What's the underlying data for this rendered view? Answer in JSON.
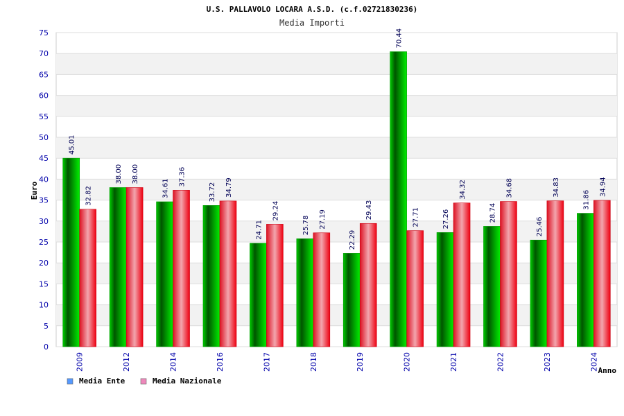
{
  "chart_data": {
    "type": "bar",
    "title": "U.S. PALLAVOLO LOCARA A.S.D. (c.f.02721830236)",
    "subtitle": "Media Importi",
    "xlabel": "Anno",
    "ylabel": "Euro",
    "ylim": [
      0,
      75
    ],
    "yticks": [
      0,
      5,
      10,
      15,
      20,
      25,
      30,
      35,
      40,
      45,
      50,
      55,
      60,
      65,
      70,
      75
    ],
    "grid": true,
    "legend_position": "bottom-left",
    "categories": [
      "2009",
      "2012",
      "2014",
      "2016",
      "2017",
      "2018",
      "2019",
      "2020",
      "2021",
      "2022",
      "2023",
      "2024"
    ],
    "series": [
      {
        "name": "Media Ente",
        "color": "#00aa00",
        "legend_color": "#5599ff",
        "values": [
          45.01,
          38.0,
          34.61,
          33.72,
          24.71,
          25.78,
          22.29,
          70.44,
          27.26,
          28.74,
          25.46,
          31.86
        ],
        "labels": [
          "45.01",
          "38.00",
          "34.61",
          "33.72",
          "24.71",
          "25.78",
          "22.29",
          "70.44",
          "27.26",
          "28.74",
          "25.46",
          "31.86"
        ]
      },
      {
        "name": "Media Nazionale",
        "color": "#ee1122",
        "legend_color": "#ee88bb",
        "values": [
          32.82,
          38.0,
          37.36,
          34.79,
          29.24,
          27.19,
          29.43,
          27.71,
          34.32,
          34.68,
          34.83,
          34.94
        ],
        "labels": [
          "32.82",
          "38.00",
          "37.36",
          "34.79",
          "29.24",
          "27.19",
          "29.43",
          "27.71",
          "34.32",
          "34.68",
          "34.83",
          "34.94"
        ]
      }
    ]
  }
}
